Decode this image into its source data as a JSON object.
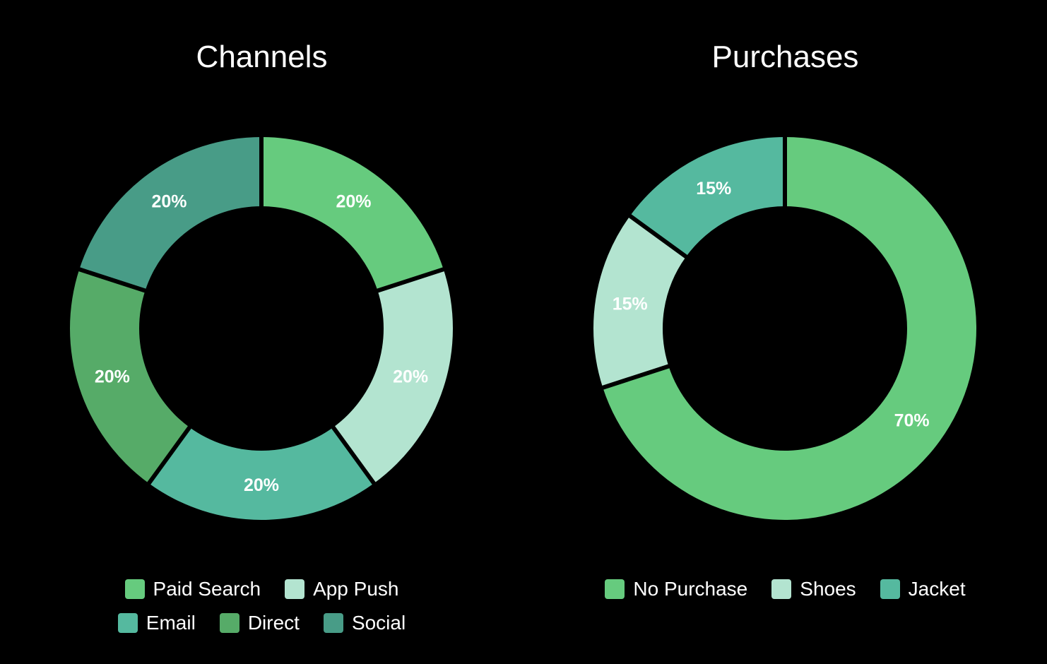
{
  "chart_data": [
    {
      "type": "pie",
      "subtype": "donut",
      "title": "Channels",
      "legend_position": "bottom",
      "categories": [
        "Paid Search",
        "App Push",
        "Email",
        "Direct",
        "Social"
      ],
      "values": [
        20,
        20,
        20,
        20,
        20
      ],
      "labels": [
        "20%",
        "20%",
        "20%",
        "20%",
        "20%"
      ],
      "colors": [
        "#66cb7e",
        "#b3e4d0",
        "#55b99f",
        "#56ab68",
        "#489c87"
      ],
      "legend_rows": [
        [
          0,
          1
        ],
        [
          2,
          3,
          4
        ]
      ]
    },
    {
      "type": "pie",
      "subtype": "donut",
      "title": "Purchases",
      "legend_position": "bottom",
      "categories": [
        "No Purchase",
        "Shoes",
        "Jacket"
      ],
      "values": [
        70,
        15,
        15
      ],
      "labels": [
        "70%",
        "15%",
        "15%"
      ],
      "colors": [
        "#66cb7e",
        "#b3e4d0",
        "#55b99f"
      ],
      "legend_rows": [
        [
          0,
          1,
          2
        ]
      ]
    }
  ]
}
